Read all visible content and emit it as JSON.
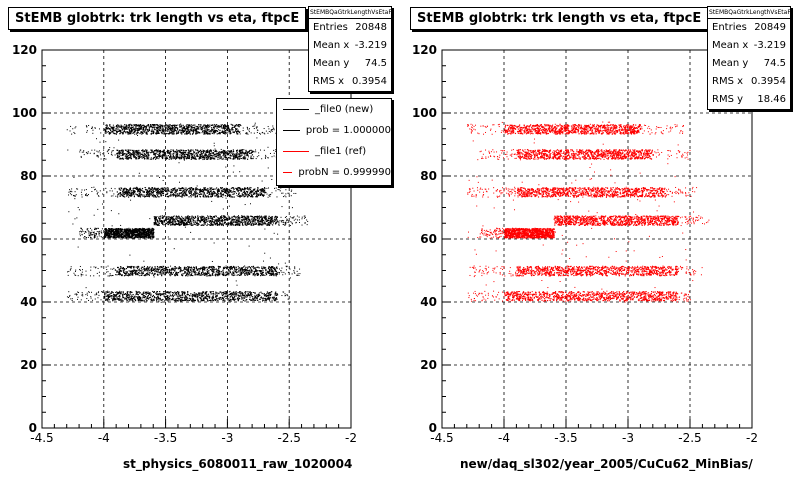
{
  "chart_data": [
    {
      "type": "scatter",
      "title": "StEMB globtrk: trk length vs eta, ftpcE",
      "xlabel": "st_physics_6080011_raw_1020004",
      "ylabel": "",
      "xlim": [
        -4.5,
        -2
      ],
      "ylim": [
        0,
        120
      ],
      "xticks": [
        "-4.5",
        "-4",
        "-3.5",
        "-3",
        "-2.5",
        "-2"
      ],
      "yticks": [
        "0",
        "20",
        "40",
        "60",
        "80",
        "100",
        "120"
      ],
      "grid": true,
      "marker_color": "#000000",
      "bands": [
        {
          "y": 95,
          "x_start": -4.3,
          "x_end": -2.55,
          "dense_start": -4.0,
          "dense_end": -2.9
        },
        {
          "y": 87,
          "x_start": -4.2,
          "x_end": -2.5,
          "dense_start": -3.9,
          "dense_end": -2.8
        },
        {
          "y": 75,
          "x_start": -4.3,
          "x_end": -2.45,
          "dense_start": -3.9,
          "dense_end": -2.7
        },
        {
          "y": 66,
          "x_start": -3.6,
          "x_end": -2.35,
          "dense_start": -3.6,
          "dense_end": -2.6
        },
        {
          "y": 62,
          "x_start": -4.2,
          "x_end": -3.6,
          "dense_start": -4.0,
          "dense_end": -3.6
        },
        {
          "y": 50,
          "x_start": -4.3,
          "x_end": -2.4,
          "dense_start": -3.9,
          "dense_end": -2.6
        },
        {
          "y": 42,
          "x_start": -4.3,
          "x_end": -2.5,
          "dense_start": -4.0,
          "dense_end": -2.6
        }
      ],
      "stats": {
        "name": "StEMBQaGtrkLengthVsEtaFE",
        "rows": [
          {
            "label": "Entries",
            "value": "20848"
          },
          {
            "label": "Mean x",
            "value": "-3.219"
          },
          {
            "label": "Mean y",
            "value": "74.5"
          },
          {
            "label": "RMS x",
            "value": "0.3954"
          }
        ]
      },
      "legend": [
        {
          "label": "_file0 (new)",
          "color": "#000000"
        },
        {
          "label": "prob = 1.000000",
          "color": "#000000"
        },
        {
          "label": "_file1 (ref)",
          "color": "#ff0000"
        },
        {
          "label": "probN = 0.999990",
          "color": "#ff0000"
        }
      ]
    },
    {
      "type": "scatter",
      "title": "StEMB globtrk: trk length vs eta, ftpcE",
      "xlabel": "new/daq_sl302/year_2005/CuCu62_MinBias/",
      "ylabel": "",
      "xlim": [
        -4.5,
        -2
      ],
      "ylim": [
        0,
        120
      ],
      "xticks": [
        "-4.5",
        "-4",
        "-3.5",
        "-3",
        "-2.5",
        "-2"
      ],
      "yticks": [
        "0",
        "20",
        "40",
        "60",
        "80",
        "100",
        "120"
      ],
      "grid": true,
      "marker_color": "#ff0000",
      "bands": [
        {
          "y": 95,
          "x_start": -4.3,
          "x_end": -2.55,
          "dense_start": -4.0,
          "dense_end": -2.9
        },
        {
          "y": 87,
          "x_start": -4.2,
          "x_end": -2.5,
          "dense_start": -3.9,
          "dense_end": -2.8
        },
        {
          "y": 75,
          "x_start": -4.3,
          "x_end": -2.45,
          "dense_start": -3.9,
          "dense_end": -2.7
        },
        {
          "y": 66,
          "x_start": -3.6,
          "x_end": -2.35,
          "dense_start": -3.6,
          "dense_end": -2.6
        },
        {
          "y": 62,
          "x_start": -4.2,
          "x_end": -3.6,
          "dense_start": -4.0,
          "dense_end": -3.6
        },
        {
          "y": 50,
          "x_start": -4.3,
          "x_end": -2.4,
          "dense_start": -3.9,
          "dense_end": -2.6
        },
        {
          "y": 42,
          "x_start": -4.3,
          "x_end": -2.5,
          "dense_start": -4.0,
          "dense_end": -2.6
        }
      ],
      "stats": {
        "name": "StEMBQaGtrkLengthVsEtaFE",
        "rows": [
          {
            "label": "Entries",
            "value": "20849"
          },
          {
            "label": "Mean x",
            "value": "-3.219"
          },
          {
            "label": "Mean y",
            "value": "74.5"
          },
          {
            "label": "RMS x",
            "value": "0.3954"
          },
          {
            "label": "RMS y",
            "value": "18.46"
          }
        ]
      }
    }
  ]
}
